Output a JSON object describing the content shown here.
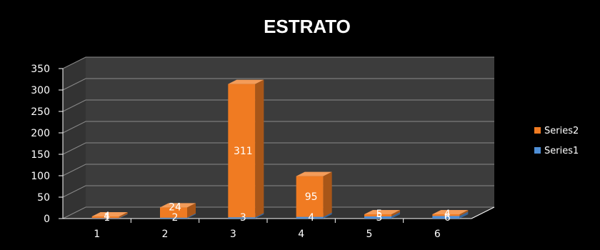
{
  "chart_data": {
    "type": "bar",
    "stacked": true,
    "three_d": true,
    "title": "ESTRATO",
    "xlabel": "",
    "ylabel": "",
    "categories": [
      "1",
      "2",
      "3",
      "4",
      "5",
      "6"
    ],
    "y_ticks": [
      "0",
      "50",
      "100",
      "150",
      "200",
      "250",
      "300",
      "350"
    ],
    "ylim": [
      0,
      350
    ],
    "grid": true,
    "legend_position": "right",
    "series": [
      {
        "name": "Series1",
        "values": [
          1,
          2,
          3,
          4,
          5,
          6
        ],
        "labels": [
          "1",
          "2",
          "3",
          "4",
          "5",
          "6"
        ],
        "color": "#4f8fd6"
      },
      {
        "name": "Series2",
        "values": [
          4,
          24,
          311,
          95,
          5,
          4
        ],
        "labels": [
          "4",
          "24",
          "311",
          "95",
          "5",
          "4"
        ],
        "color": "#f07b22"
      }
    ],
    "legend": [
      {
        "name": "Series2",
        "color": "#f07b22"
      },
      {
        "name": "Series1",
        "color": "#4f8fd6"
      }
    ],
    "colors": {
      "background": "#000000",
      "wall": "#3c3c3c",
      "floor": "#343434",
      "grid": "#8a8a8a",
      "text": "#ffffff"
    }
  }
}
